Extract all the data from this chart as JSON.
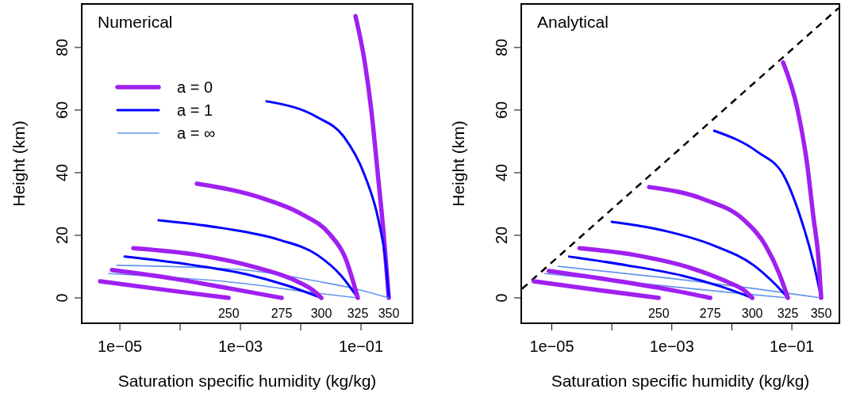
{
  "chart_data": [
    {
      "type": "line",
      "title": "Numerical",
      "xlabel": "Saturation specific humidity (kg/kg)",
      "ylabel": "Height (km)",
      "log": "x",
      "grid": false,
      "legend": "top left",
      "marker": "none",
      "line_style": "solid",
      "xlim": [
        2.33e-06,
        0.716
      ],
      "ylim": [
        -8.1,
        93.9
      ],
      "xticks": [
        {
          "value": 1e-05,
          "label": "1e−05"
        },
        {
          "value": 0.0001,
          "label": null
        },
        {
          "value": 0.001,
          "label": "1e−03"
        },
        {
          "value": 0.01,
          "label": null
        },
        {
          "value": 0.1,
          "label": "1e−01"
        }
      ],
      "yticks": [
        0,
        20,
        40,
        60,
        80
      ],
      "series": [
        {
          "name": "a = 0",
          "color": "#a020f0",
          "x": [
            0.081,
            0.116,
            0.148,
            0.189,
            0.241,
            0.289
          ],
          "values": [
            90,
            75,
            60,
            40,
            19,
            0
          ]
        },
        {
          "name": "a = 1",
          "color": "#0000ff",
          "x": [
            0.00272,
            0.0189,
            0.0514,
            0.116,
            0.195,
            0.256,
            0.289
          ],
          "values": [
            62.8,
            57.7,
            51.6,
            39,
            24.8,
            11.6,
            0
          ]
        },
        {
          "name": "a = ∞",
          "color": "#6495ed",
          "x": [
            8.9e-06,
            0.00091,
            0.0189,
            0.0859,
            0.289
          ],
          "values": [
            10.4,
            9.1,
            5.3,
            2.8,
            0
          ]
        },
        {
          "color": "#6495ed",
          "x": [
            6.5e-06,
            0.00091,
            0.0189,
            0.0885
          ],
          "values": [
            7.8,
            4.8,
            1.5,
            0
          ]
        },
        {
          "color": "#0000ff",
          "x": [
            4.4e-05,
            0.000498,
            0.00415,
            0.0189,
            0.0469,
            0.0885
          ],
          "values": [
            24.8,
            22.3,
            18.7,
            13.7,
            7.1,
            0
          ]
        },
        {
          "color": "#0000ff",
          "x": [
            1.2e-05,
            0.000148,
            0.00124,
            0.0056,
            0.022
          ],
          "values": [
            13.2,
            10.6,
            7.6,
            4.1,
            0
          ]
        },
        {
          "color": "#a020f0",
          "x": [
            0.000189,
            0.00226,
            0.0103,
            0.0298,
            0.0546,
            0.0885
          ],
          "values": [
            36.5,
            31.9,
            26.8,
            20.5,
            12.9,
            0
          ]
        },
        {
          "color": "#a020f0",
          "x": [
            1.67e-05,
            0.0002,
            0.00168,
            0.0076,
            0.0163,
            0.022
          ],
          "values": [
            15.9,
            13.7,
            9.9,
            5.8,
            2.3,
            0
          ]
        },
        {
          "color": "#a020f0",
          "x": [
            7.4e-06,
            8.1e-05,
            0.00067,
            0.00483
          ],
          "values": [
            8.9,
            6.1,
            3.0,
            0
          ]
        },
        {
          "color": "#a020f0",
          "x": [
            4.7e-06,
            6e-05,
            0.00064
          ],
          "values": [
            5.3,
            2.5,
            0
          ]
        }
      ],
      "annotations": [
        {
          "text": "250",
          "x": 0.00064,
          "y": 0
        },
        {
          "text": "275",
          "x": 0.00483,
          "y": 0
        },
        {
          "text": "300",
          "x": 0.022,
          "y": 0
        },
        {
          "text": "325",
          "x": 0.0885,
          "y": 0
        },
        {
          "text": "350",
          "x": 0.289,
          "y": 0
        }
      ]
    },
    {
      "type": "line",
      "title": "Analytical",
      "xlabel": "Saturation specific humidity (kg/kg)",
      "ylabel": "Height (km)",
      "log": "x",
      "grid": false,
      "marker": "none",
      "line_style": "solid",
      "xlim": [
        3.1e-06,
        0.62
      ],
      "ylim": [
        -8.1,
        93.9
      ],
      "xticks": [
        {
          "value": 1e-05,
          "label": "1e−05"
        },
        {
          "value": 0.0001,
          "label": null
        },
        {
          "value": 0.001,
          "label": "1e−03"
        },
        {
          "value": 0.01,
          "label": null
        },
        {
          "value": 0.1,
          "label": "1e−01"
        }
      ],
      "yticks": [
        0,
        20,
        40,
        60,
        80
      ],
      "series": [
        {
          "color": "#000000",
          "line_style": "dashed",
          "x": [
            3.2e-06,
            0.6
          ],
          "values": [
            2.9,
            92.6
          ]
        },
        {
          "color": "#6495ed",
          "x": [
            1.28e-05,
            0.00111,
            0.0232,
            0.308
          ],
          "values": [
            10.1,
            6.1,
            3.0,
            0
          ]
        },
        {
          "color": "#6495ed",
          "x": [
            7.6e-06,
            0.00111,
            0.0161,
            0.0859
          ],
          "values": [
            7.8,
            3.5,
            1.3,
            0
          ]
        },
        {
          "color": "#0000ff",
          "x": [
            0.00508,
            0.027,
            0.0738,
            0.136,
            0.227,
            0.308
          ],
          "values": [
            53.4,
            46.6,
            39,
            26.3,
            11.6,
            0
          ]
        },
        {
          "color": "#0000ff",
          "x": [
            0.0001,
            0.00082,
            0.00508,
            0.0232,
            0.0544,
            0.0859
          ],
          "values": [
            24.3,
            21.3,
            16.7,
            10.4,
            4.1,
            0
          ]
        },
        {
          "color": "#0000ff",
          "x": [
            1.95e-05,
            0.00018,
            0.00151,
            0.0069,
            0.0219
          ],
          "values": [
            13.2,
            10.4,
            7.1,
            3.5,
            0
          ]
        },
        {
          "color": "#a020f0",
          "x": [
            0.0716,
            0.124,
            0.178,
            0.227,
            0.281,
            0.308
          ],
          "values": [
            75.2,
            60.3,
            43.3,
            26.3,
            11.6,
            0
          ]
        },
        {
          "color": "#a020f0",
          "x": [
            0.00042,
            0.00353,
            0.0161,
            0.0366,
            0.0615,
            0.0859
          ],
          "values": [
            35.4,
            31.4,
            24.8,
            16.7,
            7.8,
            0
          ]
        },
        {
          "color": "#a020f0",
          "x": [
            2.9e-05,
            0.000243,
            0.00204,
            0.008,
            0.0171,
            0.0219
          ],
          "values": [
            15.9,
            13.7,
            9.6,
            5.3,
            2.0,
            0
          ]
        },
        {
          "color": "#a020f0",
          "x": [
            8.9e-06,
            0.000132,
            0.00111,
            0.00437
          ],
          "values": [
            8.6,
            5.3,
            2.3,
            0
          ]
        },
        {
          "color": "#a020f0",
          "x": [
            5e-06,
            7.2e-05,
            0.000605
          ],
          "values": [
            5.3,
            2.3,
            0
          ]
        }
      ],
      "annotations": [
        {
          "text": "250",
          "x": 0.000605,
          "y": 0
        },
        {
          "text": "275",
          "x": 0.00437,
          "y": 0
        },
        {
          "text": "300",
          "x": 0.0219,
          "y": 0
        },
        {
          "text": "325",
          "x": 0.0859,
          "y": 0
        },
        {
          "text": "350",
          "x": 0.308,
          "y": 0
        }
      ]
    }
  ]
}
